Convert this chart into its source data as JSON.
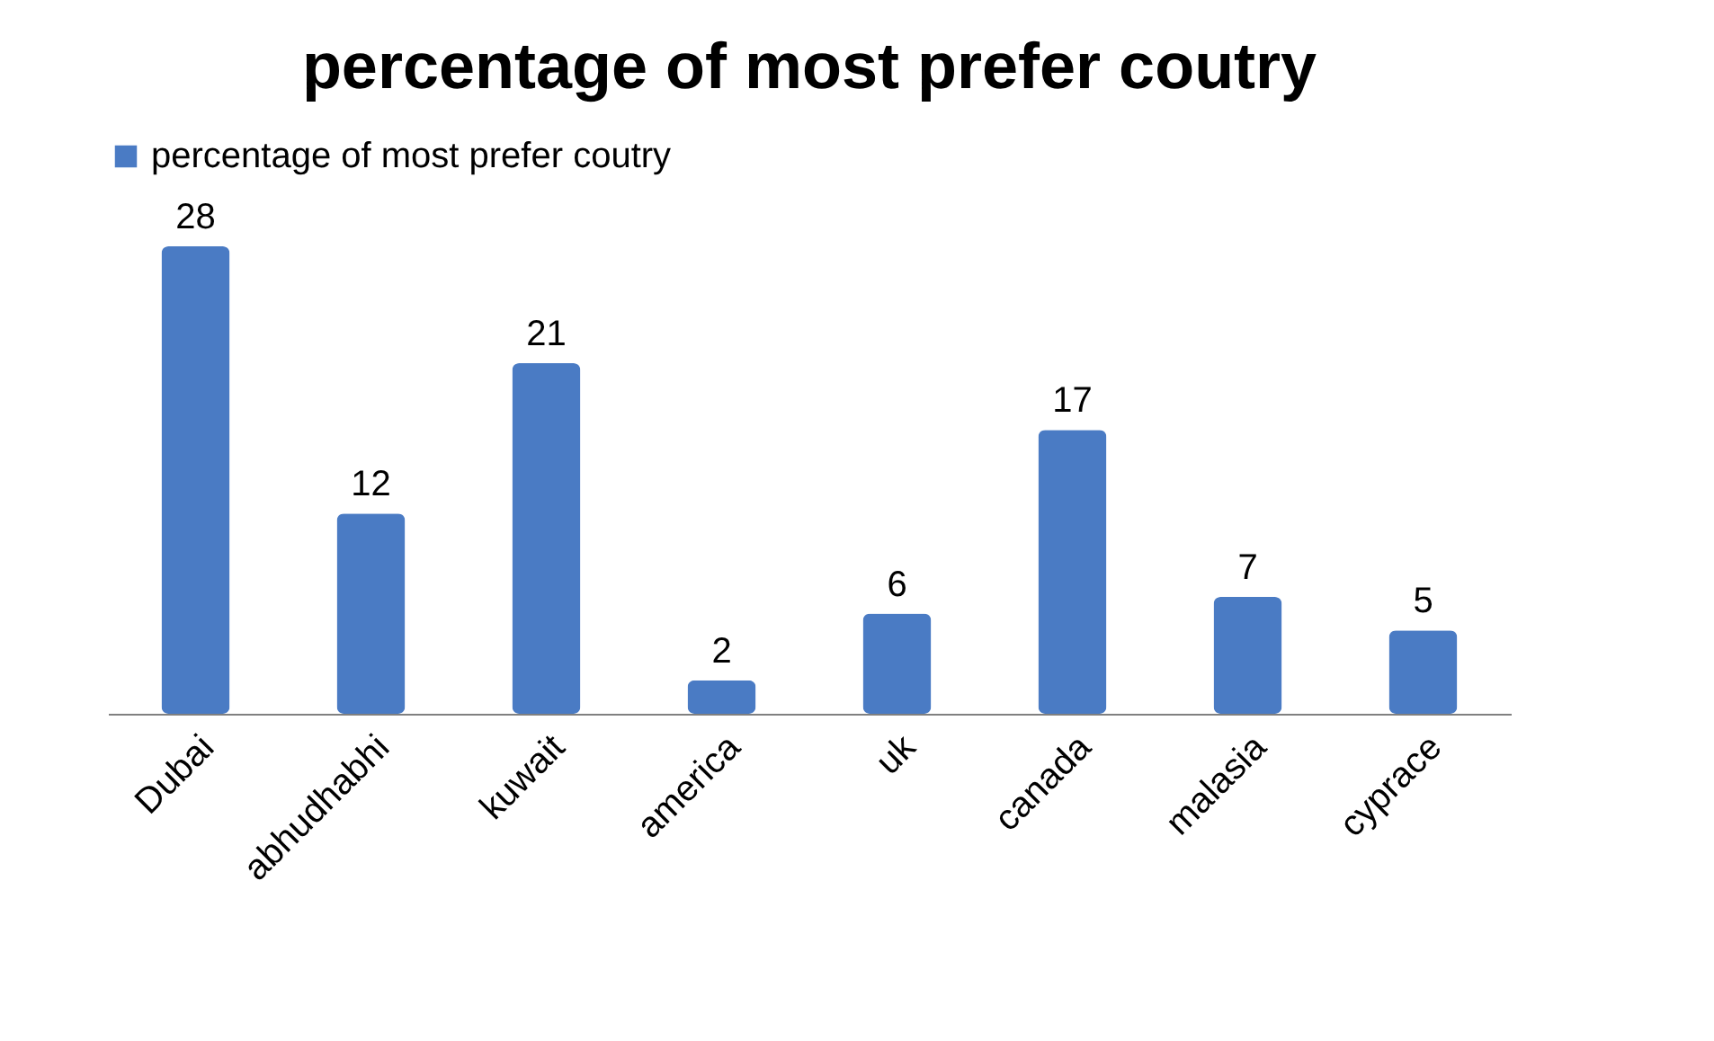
{
  "chart_data": {
    "type": "bar",
    "title": "percentage of most prefer coutry",
    "categories": [
      "Dubai",
      "abhudhabhi",
      "kuwait",
      "america",
      "uk",
      "canada",
      "malasia",
      "cyprace"
    ],
    "series": [
      {
        "name": "percentage of most prefer coutry",
        "color": "#4a7bc4",
        "values": [
          28,
          12,
          21,
          2,
          6,
          17,
          7,
          5
        ]
      }
    ],
    "data_labels": true,
    "legend": "top",
    "grid": false,
    "tick_labels": "x"
  }
}
